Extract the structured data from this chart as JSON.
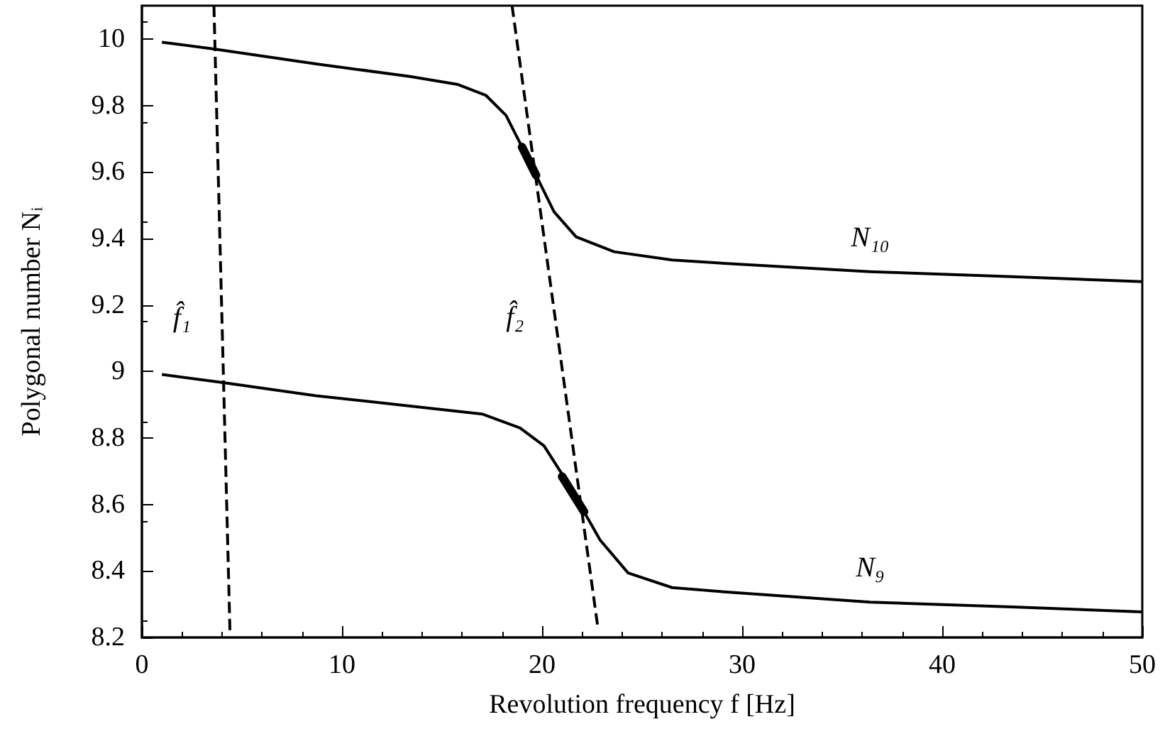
{
  "chart_data": {
    "type": "line",
    "xlabel": "Revolution frequency f [Hz]",
    "ylabel": "Polygonal number Nᵢ",
    "xlim": [
      0,
      50
    ],
    "xticks": [
      0,
      10,
      20,
      30,
      40,
      50
    ],
    "ylim": [
      8.2,
      10.1
    ],
    "yticks": [
      8.2,
      8.4,
      8.6,
      8.8,
      9,
      9.2,
      9.4,
      9.6,
      9.8,
      10
    ],
    "grid": false,
    "legend": false,
    "marker": "none",
    "series": [
      {
        "name": "N₁₀",
        "color": "#000000",
        "x": [
          1.0,
          3.6,
          8.7,
          13.4,
          15.8,
          17.2,
          18.2,
          19.0,
          19.7,
          20.6,
          21.7,
          23.6,
          26.5,
          29.1,
          36.4,
          43.5,
          50
        ],
        "values": [
          9.99,
          9.97,
          9.925,
          9.887,
          9.863,
          9.83,
          9.77,
          9.675,
          9.59,
          9.48,
          9.405,
          9.36,
          9.335,
          9.325,
          9.3,
          9.285,
          9.27
        ]
      },
      {
        "name": "N₉",
        "color": "#000000",
        "x": [
          1.0,
          4.0,
          8.7,
          13.4,
          17.0,
          18.9,
          20.1,
          21.3,
          22.1,
          22.9,
          24.3,
          26.5,
          29.1,
          36.4,
          43.5,
          50
        ],
        "values": [
          8.991,
          8.967,
          8.927,
          8.896,
          8.872,
          8.83,
          8.776,
          8.663,
          8.578,
          8.493,
          8.394,
          8.35,
          8.337,
          8.306,
          8.292,
          8.277
        ]
      },
      {
        "color": "#000000",
        "line_style": "solid",
        "x": [
          19.0,
          19.7
        ],
        "values": [
          9.675,
          9.59
        ]
      },
      {
        "color": "#000000",
        "line_style": "solid",
        "x": [
          21.0,
          22.1
        ],
        "values": [
          8.684,
          8.578
        ]
      },
      {
        "name": "f̂₁",
        "color": "#000000",
        "line_style": "dashed",
        "x": [
          3.6,
          4.4
        ],
        "values": [
          10.1,
          8.22
        ]
      },
      {
        "name": "f̂₂",
        "color": "#000000",
        "line_style": "dashed",
        "x": [
          18.5,
          22.8
        ],
        "values": [
          10.1,
          8.225
        ]
      }
    ]
  }
}
